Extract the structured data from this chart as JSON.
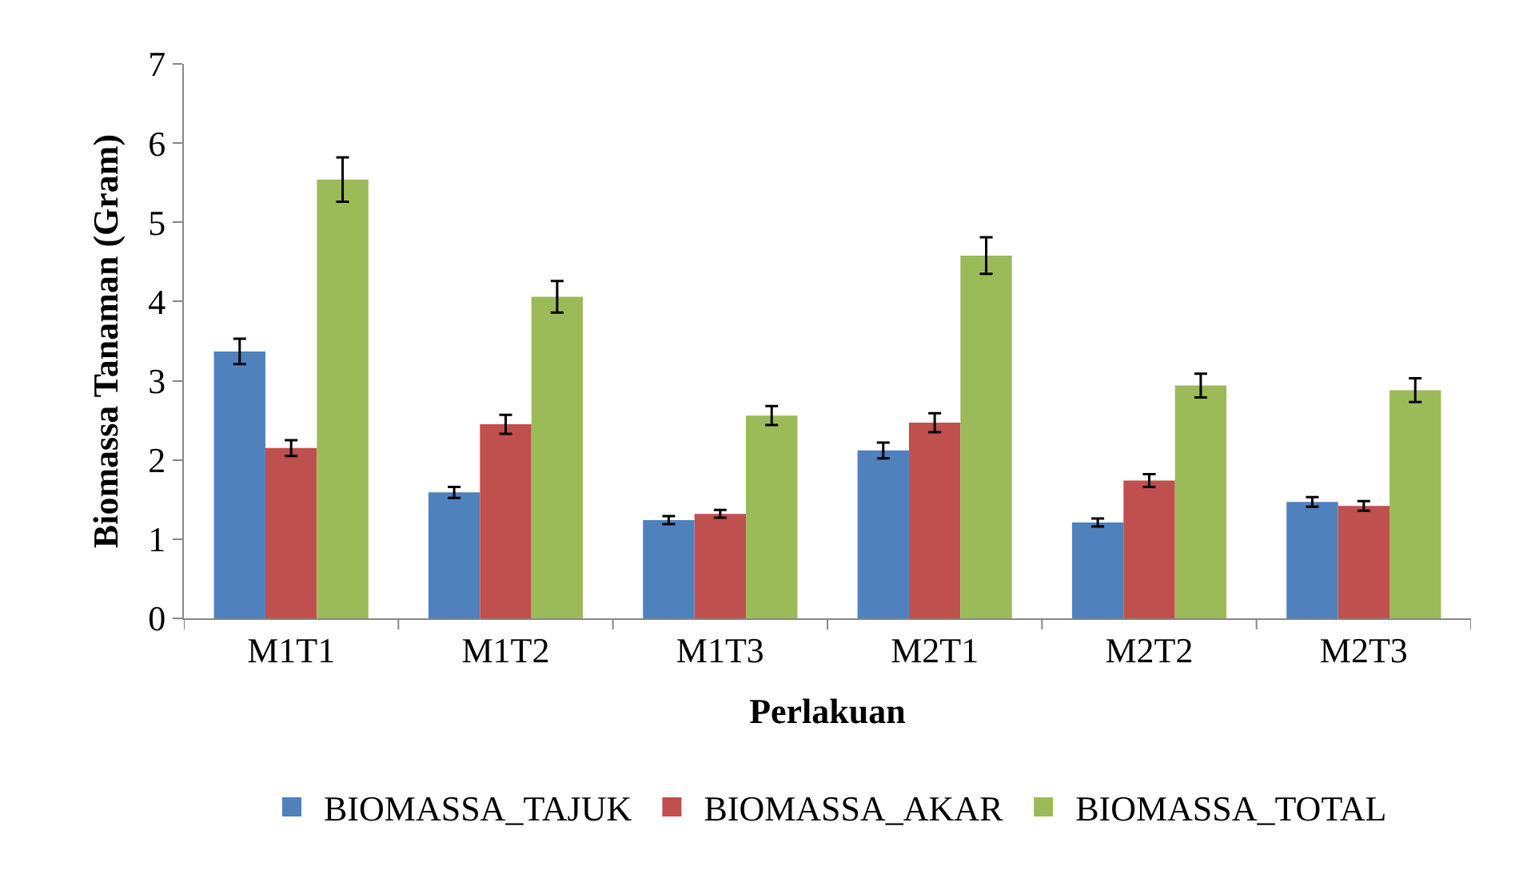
{
  "chart_data": {
    "type": "bar",
    "xlabel": "Perlakuan",
    "ylabel": "Biomassa Tanaman (Gram)",
    "categories": [
      "M1T1",
      "M1T2",
      "M1T3",
      "M2T1",
      "M2T2",
      "M2T3"
    ],
    "series": [
      {
        "name": "BIOMASSA_TAJUK",
        "color": "#4f81bd",
        "values": [
          3.37,
          1.59,
          1.24,
          2.12,
          1.21,
          1.47
        ],
        "errors": [
          0.16,
          0.07,
          0.05,
          0.1,
          0.05,
          0.06
        ]
      },
      {
        "name": "BIOMASSA_AKAR",
        "color": "#c0504d",
        "values": [
          2.15,
          2.45,
          1.32,
          2.47,
          1.74,
          1.42
        ],
        "errors": [
          0.1,
          0.12,
          0.05,
          0.12,
          0.08,
          0.06
        ]
      },
      {
        "name": "BIOMASSA_TOTAL",
        "color": "#9bbb59",
        "values": [
          5.54,
          4.06,
          2.56,
          4.58,
          2.94,
          2.88
        ],
        "errors": [
          0.28,
          0.2,
          0.12,
          0.23,
          0.15,
          0.15
        ]
      }
    ],
    "ylim": [
      0,
      7
    ],
    "yticks": [
      0,
      1,
      2,
      3,
      4,
      5,
      6,
      7
    ],
    "grid": false,
    "legend": "bottom"
  }
}
